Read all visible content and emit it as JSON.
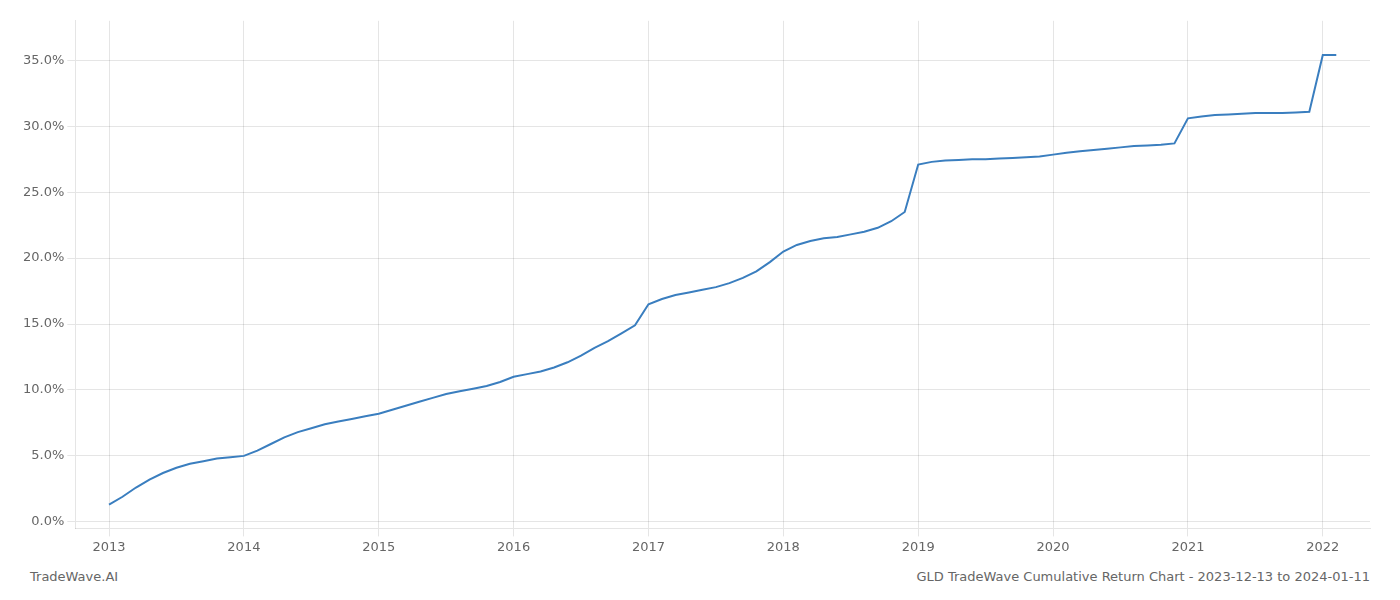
{
  "chart_data": {
    "type": "line",
    "color": "#3a7ebf",
    "grid": true,
    "x": [
      2013.0,
      2013.1,
      2013.2,
      2013.3,
      2013.4,
      2013.5,
      2013.6,
      2013.7,
      2013.8,
      2013.9,
      2014.0,
      2014.1,
      2014.2,
      2014.3,
      2014.4,
      2014.5,
      2014.6,
      2014.7,
      2014.8,
      2014.9,
      2015.0,
      2015.1,
      2015.2,
      2015.3,
      2015.4,
      2015.5,
      2015.6,
      2015.7,
      2015.8,
      2015.9,
      2016.0,
      2016.1,
      2016.2,
      2016.3,
      2016.4,
      2016.5,
      2016.6,
      2016.7,
      2016.8,
      2016.9,
      2017.0,
      2017.1,
      2017.2,
      2017.3,
      2017.4,
      2017.5,
      2017.6,
      2017.7,
      2017.8,
      2017.9,
      2018.0,
      2018.1,
      2018.2,
      2018.3,
      2018.4,
      2018.5,
      2018.6,
      2018.7,
      2018.8,
      2018.9,
      2019.0,
      2019.1,
      2019.2,
      2019.3,
      2019.4,
      2019.5,
      2019.6,
      2019.7,
      2019.8,
      2019.9,
      2020.0,
      2020.1,
      2020.2,
      2020.3,
      2020.4,
      2020.5,
      2020.6,
      2020.7,
      2020.8,
      2020.9,
      2021.0,
      2021.1,
      2021.2,
      2021.3,
      2021.4,
      2021.5,
      2021.6,
      2021.7,
      2021.8,
      2021.9,
      2022.0,
      2022.1
    ],
    "values": [
      1.3,
      1.9,
      2.6,
      3.2,
      3.7,
      4.1,
      4.4,
      4.6,
      4.8,
      4.9,
      5.0,
      5.4,
      5.9,
      6.4,
      6.8,
      7.1,
      7.4,
      7.6,
      7.8,
      8.0,
      8.2,
      8.5,
      8.8,
      9.1,
      9.4,
      9.7,
      9.9,
      10.1,
      10.3,
      10.6,
      11.0,
      11.2,
      11.4,
      11.7,
      12.1,
      12.6,
      13.2,
      13.7,
      14.3,
      14.9,
      16.5,
      16.9,
      17.2,
      17.4,
      17.6,
      17.8,
      18.1,
      18.5,
      19.0,
      19.7,
      20.5,
      21.0,
      21.3,
      21.5,
      21.6,
      21.8,
      22.0,
      22.3,
      22.8,
      23.5,
      27.1,
      27.3,
      27.4,
      27.45,
      27.5,
      27.5,
      27.55,
      27.6,
      27.65,
      27.7,
      27.85,
      28.0,
      28.1,
      28.2,
      28.3,
      28.4,
      28.5,
      28.55,
      28.6,
      28.7,
      30.6,
      30.75,
      30.85,
      30.9,
      30.95,
      31.0,
      31.0,
      31.0,
      31.05,
      31.1,
      35.4,
      35.4
    ],
    "xlim": [
      2012.75,
      2022.35
    ],
    "xticks": [
      2013,
      2014,
      2015,
      2016,
      2017,
      2018,
      2019,
      2020,
      2021,
      2022
    ],
    "ylim": [
      -0.5,
      38.0
    ],
    "yticks": [
      {
        "value": 0.0,
        "label": "0.0%"
      },
      {
        "value": 5.0,
        "label": "5.0%"
      },
      {
        "value": 10.0,
        "label": "10.0%"
      },
      {
        "value": 15.0,
        "label": "15.0%"
      },
      {
        "value": 20.0,
        "label": "20.0%"
      },
      {
        "value": 25.0,
        "label": "25.0%"
      },
      {
        "value": 30.0,
        "label": "30.0%"
      },
      {
        "value": 35.0,
        "label": "35.0%"
      }
    ],
    "annotations": [
      "TradeWave.AI",
      "GLD TradeWave Cumulative Return Chart - 2023-12-13 to 2024-01-11"
    ]
  }
}
